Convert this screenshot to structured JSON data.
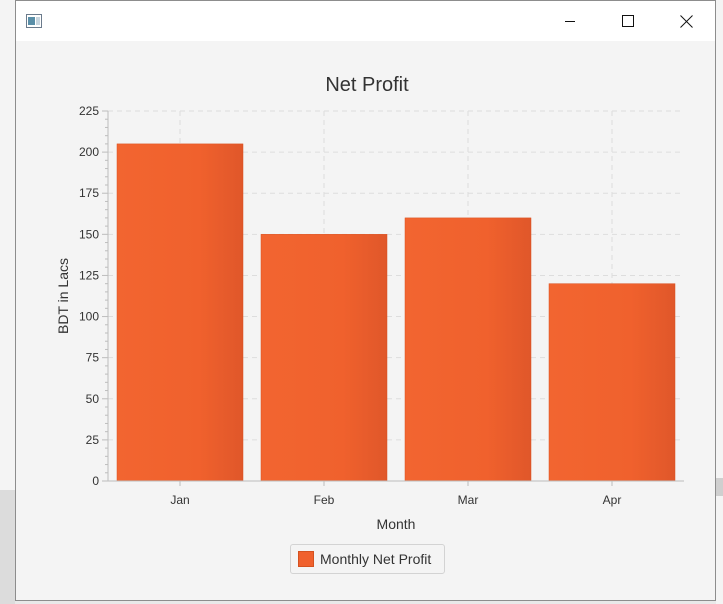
{
  "window": {
    "icon": "app-window-icon",
    "controls": [
      "minimize-icon",
      "maximize-icon",
      "close-icon"
    ]
  },
  "colors": {
    "bar": "#f0612d",
    "bar_dark": "#d9501f",
    "grid": "#dddddd",
    "axis": "#bdbdbd",
    "text": "#333333"
  },
  "chart_data": {
    "type": "bar",
    "title": "Net Profit",
    "xlabel": "Month",
    "ylabel": "BDT in Lacs",
    "categories": [
      "Jan",
      "Feb",
      "Mar",
      "Apr"
    ],
    "series": [
      {
        "name": "Monthly Net Profit",
        "values": [
          205,
          150,
          160,
          120
        ]
      }
    ],
    "ylim": [
      0,
      225
    ],
    "yticks": [
      0,
      25,
      50,
      75,
      100,
      125,
      150,
      175,
      200,
      225
    ],
    "grid": true,
    "legend": "bottom"
  }
}
